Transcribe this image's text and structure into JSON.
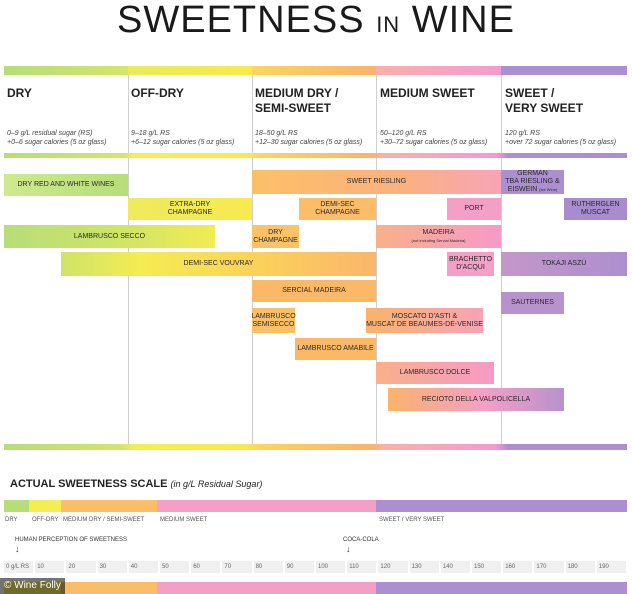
{
  "title": {
    "part1": "SWEETNESS",
    "part2": "IN",
    "part3": "WINE"
  },
  "categories": [
    {
      "name": "DRY",
      "name2": "",
      "rs1": "0–9 g/L residual sugar (RS)",
      "rs2": "+0–6 sugar calories (5 oz glass)",
      "color": "#b6dd7a"
    },
    {
      "name": "OFF-DRY",
      "name2": "",
      "rs1": "9–18 g/L RS",
      "rs2": "+6–12 sugar calories (5 oz glass)",
      "color": "#f4ee55"
    },
    {
      "name": "MEDIUM DRY /",
      "name2": "SEMI-SWEET",
      "rs1": "18–50 g/L RS",
      "rs2": "+12–30 sugar calories (5 oz glass)",
      "color": "#fbc066"
    },
    {
      "name": "MEDIUM SWEET",
      "name2": "",
      "rs1": "50–120 g/L RS",
      "rs2": "+30–72 sugar calories (5 oz glass)",
      "color": "#f6a1c4"
    },
    {
      "name": "SWEET /",
      "name2": "VERY SWEET",
      "rs1": "120 g/L RS",
      "rs2": "+over 72 sugar calories (5 oz glass)",
      "color": "#ac8fd0"
    }
  ],
  "wines": {
    "dry_red_white": "DRY RED AND WHITE WINES",
    "sweet_riesling": "SWEET RIESLING",
    "german_tba": "GERMAN",
    "german_tba2": "TBA RIESLING &",
    "german_tba3": "EISWEIN",
    "german_tba_note": "(ice Wine)",
    "extra_dry": "EXTRA-DRY",
    "extra_dry2": "CHAMPAGNE",
    "demi_sec": "DEMI-SEC",
    "demi_sec2": "CHAMPAGNE",
    "port": "PORT",
    "rutherglen": "RUTHERGLEN",
    "rutherglen2": "MUSCAT",
    "lambrusco_secco": "LAMBRUSCO SECCO",
    "dry_champ": "DRY",
    "dry_champ2": "CHAMPAGNE",
    "madeira": "MADEIRA",
    "madeira_note": "(not including Sercial Madeira)",
    "demi_sec_vouvray": "DEMI-SEC VOUVRAY",
    "brachetto": "BRACHETTO",
    "brachetto2": "D'ACQUI",
    "tokaji": "TOKAJI ASZÚ",
    "sercial": "SERCIAL MADEIRA",
    "sauternes": "SAUTERNES",
    "lambrusco_semisecco": "LAMBRUSCO",
    "lambrusco_semisecco2": "SEMISECCO",
    "moscato": "MOSCATO D'ASTI &",
    "moscato2": "MUSCAT DE BEAUMES-DE-VENISE",
    "lambrusco_amabile": "LAMBRUSCO AMABILE",
    "lambrusco_dolce": "LAMBRUSCO DOLCE",
    "recioto": "RECIOTO DELLA VALPOLICELLA"
  },
  "scale": {
    "title": "ACTUAL SWEETNESS SCALE",
    "subtitle": "(in g/L Residual Sugar)",
    "labels": [
      "DRY",
      "OFF-DRY",
      "MEDIUM DRY / SEMI-SWEET",
      "MEDIUM SWEET",
      "SWEET / VERY SWEET"
    ],
    "human_perception": "HUMAN PERCEPTION OF SWEETNESS",
    "coca_cola": "COCA-COLA",
    "ticks": [
      "0 g/L RS",
      "10",
      "20",
      "30",
      "40",
      "50",
      "60",
      "70",
      "80",
      "90",
      "100",
      "110",
      "120",
      "130",
      "140",
      "150",
      "160",
      "170",
      "180",
      "190"
    ]
  },
  "footer": "© Wine Folly",
  "colors": {
    "dry": "#b6dd7a",
    "offdry": "#f4ee55",
    "meddry": "#fbc066",
    "medsweet": "#f6a1c4",
    "sweet": "#ac8fd0"
  }
}
